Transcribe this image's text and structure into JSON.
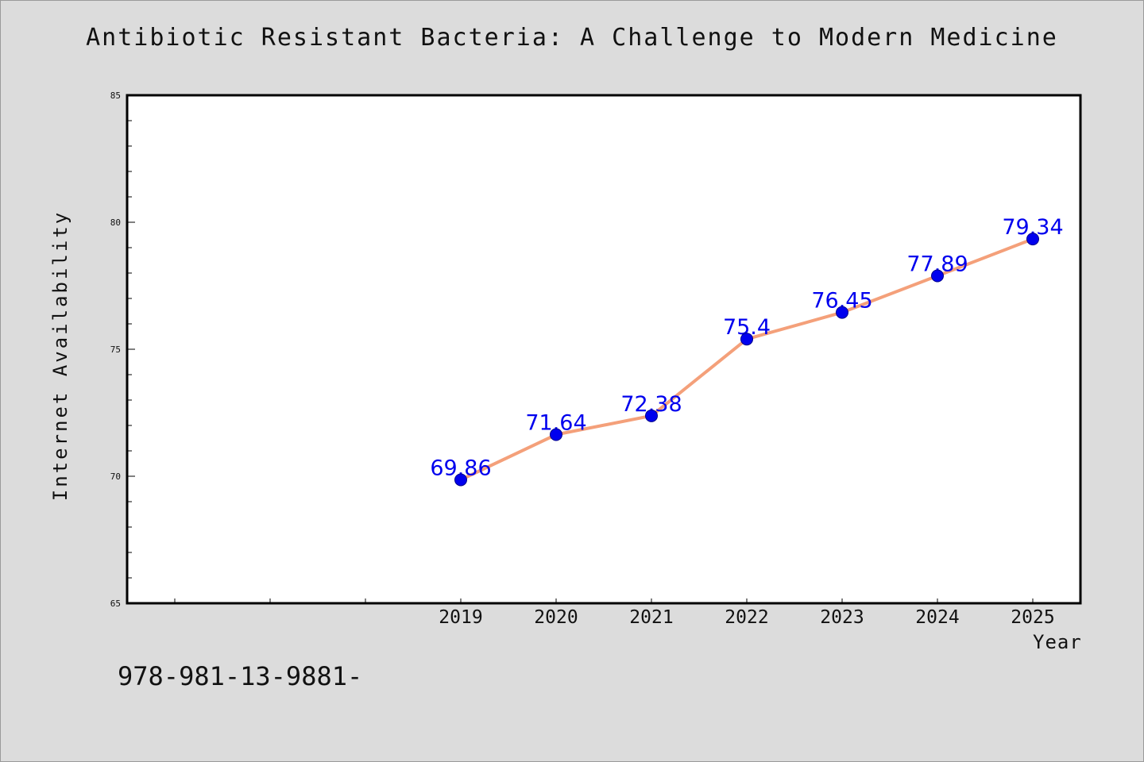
{
  "chart_data": {
    "type": "line",
    "title": "Antibiotic Resistant Bacteria: A Challenge to Modern Medicine",
    "xlabel": "Year",
    "ylabel": "Internet Availability",
    "x": [
      "2019",
      "2020",
      "2021",
      "2022",
      "2023",
      "2024",
      "2025"
    ],
    "xlim_categories": [
      "",
      "",
      "",
      "2019",
      "2020",
      "2021",
      "2022",
      "2023",
      "2024",
      "2025"
    ],
    "series": [
      {
        "values": [
          69.86,
          71.64,
          72.38,
          75.4,
          76.45,
          77.89,
          79.34
        ],
        "labels": [
          "69.86",
          "71.64",
          "72.38",
          "75.4",
          "76.45",
          "77.89",
          "79.34"
        ],
        "line_color": "#f4a07a",
        "marker_color": "#0000ee"
      }
    ],
    "ylim": [
      65,
      85
    ],
    "yticks": [
      "65",
      "70",
      "75",
      "80",
      "85"
    ],
    "grid": false,
    "legend": "none"
  },
  "footer_text": "978-981-13-9881-",
  "colors": {
    "background": "#dcdcdc",
    "plot_background": "#ffffff",
    "label_color": "#0000ee"
  }
}
